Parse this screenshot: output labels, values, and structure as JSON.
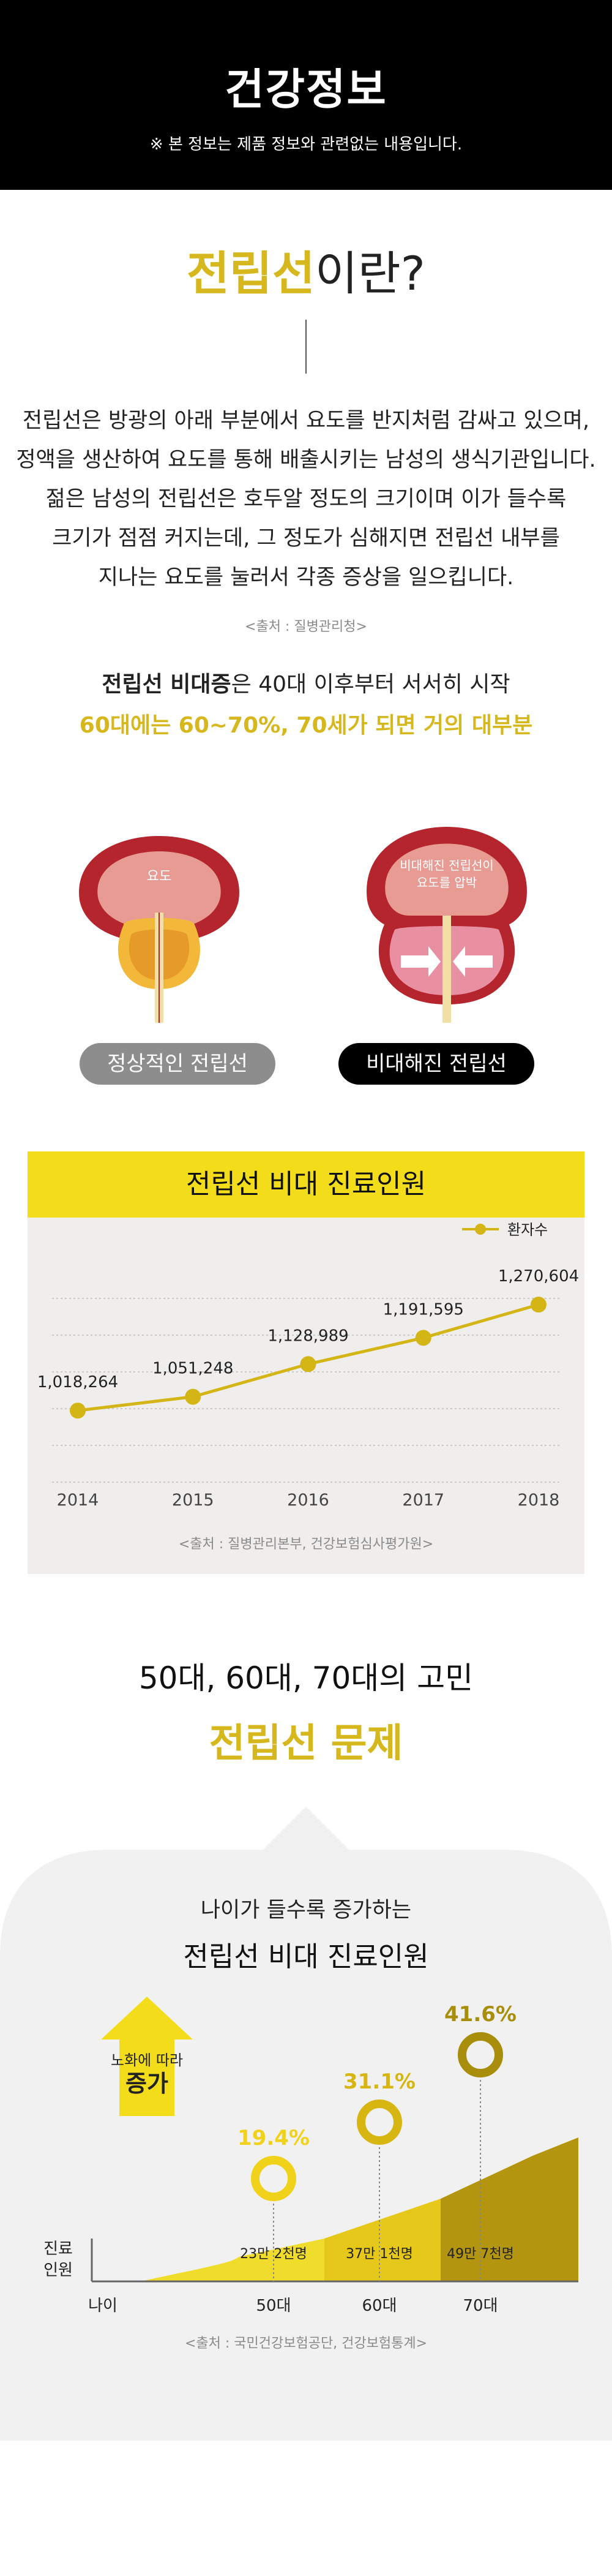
{
  "header": {
    "title": "건강정보",
    "note": "※ 본 정보는 제품 정보와 관련없는 내용입니다."
  },
  "intro": {
    "title_highlight": "전립선",
    "title_rest": "이란?",
    "paragraph": [
      "전립선은 방광의 아래 부분에서 요도를 반지처럼 감싸고 있으며,",
      "정액을 생산하여 요도를 통해 배출시키는 남성의 생식기관입니다.",
      "젊은 남성의 전립선은 호두알 정도의 크기이며 이가 들수록",
      "크기가 점점 커지는데, 그 정도가 심해지면 전립선 내부를",
      "지나는 요도를 눌러서 각종 증상을 일으킵니다."
    ],
    "source": "<출처 : 질병관리청>"
  },
  "bph": {
    "lead_bold": "전립선 비대증",
    "lead_rest": "은 40대 이후부터 서서히 시작",
    "lead2": "60대에는 60~70%, 70세가 되면 거의 대부분",
    "normal_label": "요도",
    "enlarged_label_line1": "비대해진 전립선이",
    "enlarged_label_line2": "요도를 압박",
    "pill_normal": "정상적인 전립선",
    "pill_enlarged": "비대해진 전립선"
  },
  "chart_data": [
    {
      "type": "line",
      "title": "전립선 비대 진료인원",
      "legend_position": "top-right",
      "x": [
        "2014",
        "2015",
        "2016",
        "2017",
        "2018"
      ],
      "series": [
        {
          "name": "환자수",
          "values": [
            1018264,
            1051248,
            1128989,
            1191595,
            1270604
          ]
        }
      ],
      "value_labels": [
        "1,018,264",
        "1,051,248",
        "1,128,989",
        "1,191,595",
        "1,270,604"
      ],
      "ylim": [
        950000,
        1300000
      ],
      "grid": true,
      "source": "<출처 : 질병관리본부, 건강보험심사평가원>"
    },
    {
      "type": "area",
      "subtitle": "나이가 들수록 증가하는",
      "title": "전립선 비대 진료인원",
      "xlabel": "나이",
      "ylabel": "진료 인원",
      "categories": [
        "50대",
        "60대",
        "70대"
      ],
      "percents": [
        19.4,
        31.1,
        41.6
      ],
      "percent_labels": [
        "19.4%",
        "31.1%",
        "41.6%"
      ],
      "counts": [
        "23만 2천명",
        "37만 1천명",
        "49만 7천명"
      ],
      "arrow_text_line1": "노화에 따라",
      "arrow_text_line2": "증가",
      "source": "<출처 : 국민건강보험공단, 건강보험통계>"
    }
  ],
  "section3": {
    "line1": "50대, 60대, 70대의 고민",
    "line2": "전립선 문제"
  },
  "colors": {
    "accent_yellow": "#f3dd1a",
    "gold": "#d6b81e",
    "dark_gold": "#a88e0a",
    "line_gold": "#d4b516",
    "prostate_red": "#b5252d",
    "bladder_pink": "#e79b93"
  }
}
